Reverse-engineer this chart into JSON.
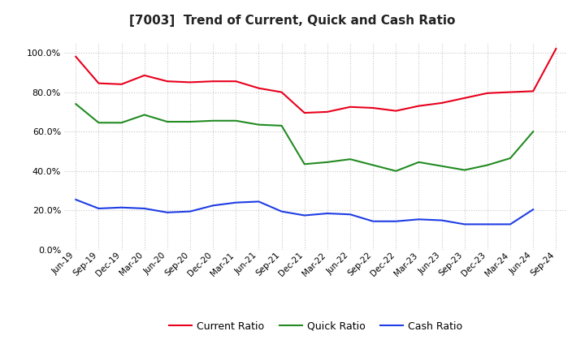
{
  "title": "[7003]  Trend of Current, Quick and Cash Ratio",
  "labels": [
    "Jun-19",
    "Sep-19",
    "Dec-19",
    "Mar-20",
    "Jun-20",
    "Sep-20",
    "Dec-20",
    "Mar-21",
    "Jun-21",
    "Sep-21",
    "Dec-21",
    "Mar-22",
    "Jun-22",
    "Sep-22",
    "Dec-22",
    "Mar-23",
    "Jun-23",
    "Sep-23",
    "Dec-23",
    "Mar-24",
    "Jun-24",
    "Sep-24"
  ],
  "current_ratio": [
    98.0,
    84.5,
    84.0,
    88.5,
    85.5,
    85.0,
    85.5,
    85.5,
    82.0,
    80.0,
    69.5,
    70.0,
    72.5,
    72.0,
    70.5,
    73.0,
    74.5,
    77.0,
    79.5,
    80.0,
    80.5,
    102.0
  ],
  "quick_ratio": [
    74.0,
    64.5,
    64.5,
    68.5,
    65.0,
    65.0,
    65.5,
    65.5,
    63.5,
    63.0,
    43.5,
    44.5,
    46.0,
    43.0,
    40.0,
    44.5,
    42.5,
    40.5,
    43.0,
    46.5,
    60.0,
    null
  ],
  "cash_ratio": [
    25.5,
    21.0,
    21.5,
    21.0,
    19.0,
    19.5,
    22.5,
    24.0,
    24.5,
    19.5,
    17.5,
    18.5,
    18.0,
    14.5,
    14.5,
    15.5,
    15.0,
    13.0,
    13.0,
    13.0,
    20.5,
    null
  ],
  "ylim": [
    0,
    105
  ],
  "yticks": [
    0,
    20,
    40,
    60,
    80,
    100
  ],
  "line_colors": {
    "current": "#e8001c",
    "quick": "#228b22",
    "cash": "#1e3de4"
  },
  "background_color": "#ffffff",
  "grid_color": "#c8c8c8",
  "legend_labels": [
    "Current Ratio",
    "Quick Ratio",
    "Cash Ratio"
  ]
}
